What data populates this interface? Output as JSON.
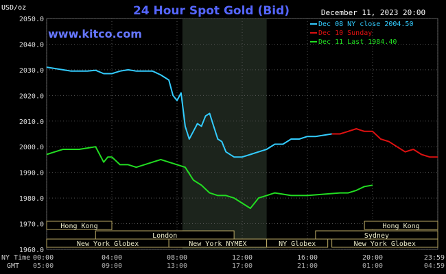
{
  "chart_data": {
    "type": "line",
    "title": "24 Hour Spot Gold (Bid)",
    "watermark": "www.kitco.com",
    "timestamp": "December 11, 2023 20:00",
    "ylabel": "USD/oz",
    "ylim": [
      1960,
      2050
    ],
    "yticks": [
      "2050.0",
      "2040.0",
      "2030.0",
      "2020.0",
      "2010.0",
      "2000.0",
      "1990.0",
      "1980.0",
      "1970.0",
      "1960.0"
    ],
    "x_axis": {
      "row1_label": "NY Time",
      "row2_label": "GMT",
      "ny_times": [
        "00:00",
        "04:00",
        "08:00",
        "12:00",
        "16:00",
        "20:00",
        "23:59"
      ],
      "gmt_times": [
        "05:00",
        "09:00",
        "13:00",
        "17:00",
        "21:00",
        "01:00",
        "04:59"
      ]
    },
    "legend": [
      {
        "label": "Dec 08 NY close 2004.50",
        "color": "#33ccff"
      },
      {
        "label": "Dec 10 Sunday",
        "color": "#dd1111"
      },
      {
        "label": "Dec 11 Last 1984.40",
        "color": "#22dd22"
      }
    ],
    "series": [
      {
        "name": "Dec 08 NY close 2004.50",
        "color": "#33ccff",
        "x": [
          0,
          0.5,
          1,
          1.5,
          2,
          2.5,
          3,
          3.5,
          4,
          4.5,
          5,
          5.5,
          6,
          6.5,
          7,
          7.5,
          7.75,
          8,
          8.25,
          8.5,
          8.75,
          9,
          9.25,
          9.5,
          9.75,
          10,
          10.25,
          10.5,
          10.75,
          11,
          11.5,
          12,
          12.5,
          13,
          13.5,
          14,
          14.5,
          15,
          15.5,
          16,
          16.5,
          17,
          17.5
        ],
        "values": [
          2031,
          2030.5,
          2030,
          2029.5,
          2029.5,
          2029.5,
          2029.8,
          2028.5,
          2028.5,
          2029.5,
          2030,
          2029.5,
          2029.5,
          2029.5,
          2028,
          2026,
          2020,
          2018,
          2021,
          2008,
          2003,
          2006,
          2009,
          2008,
          2012,
          2013,
          2008,
          2003,
          2002,
          1998,
          1996,
          1996,
          1997,
          1998,
          1999,
          2001,
          2001,
          2003,
          2003,
          2004,
          2004,
          2004.5,
          2005
        ]
      },
      {
        "name": "Dec 10 Sunday",
        "color": "#dd1111",
        "x": [
          17.5,
          18,
          18.5,
          19,
          19.5,
          20,
          20.5,
          21,
          21.5,
          22,
          22.5,
          23,
          23.5,
          24
        ],
        "values": [
          2005,
          2005,
          2006,
          2007,
          2006,
          2006,
          2003,
          2002,
          2000,
          1998,
          1999,
          1997,
          1996,
          1996
        ]
      },
      {
        "name": "Dec 11 Last 1984.40",
        "color": "#22dd22",
        "x": [
          0,
          0.5,
          1,
          1.5,
          2,
          2.5,
          3,
          3.5,
          3.75,
          4,
          4.5,
          5,
          5.5,
          6,
          6.5,
          7,
          7.5,
          8,
          8.5,
          9,
          9.5,
          10,
          10.5,
          11,
          11.5,
          12,
          12.5,
          13,
          13.5,
          14,
          15,
          16,
          17,
          18,
          18.5,
          19,
          19.5,
          20
        ],
        "values": [
          1997,
          1998,
          1999,
          1999,
          1999,
          1999.5,
          2000,
          1994,
          1996,
          1996,
          1993,
          1993,
          1992,
          1993,
          1994,
          1995,
          1994,
          1993,
          1992,
          1987,
          1985,
          1982,
          1981,
          1981,
          1980,
          1978,
          1976,
          1980,
          1981,
          1982,
          1981,
          1981,
          1981.5,
          1982,
          1982,
          1983,
          1984.5,
          1985
        ]
      }
    ],
    "market_sessions": [
      {
        "label": "Hong Kong",
        "start": 0,
        "end": 4
      },
      {
        "label": "London",
        "start": 3,
        "end": 11.5
      },
      {
        "label": "New York Globex",
        "start": 0,
        "end": 7.5
      },
      {
        "label": "New York NYMEX",
        "start": 7.5,
        "end": 13.5
      },
      {
        "label": "NY Globex",
        "start": 13.5,
        "end": 17.25
      },
      {
        "label": "Hong Kong",
        "start": 19.5,
        "end": 24
      },
      {
        "label": "Sydney",
        "start": 16.5,
        "end": 24
      },
      {
        "label": "New York Globex",
        "start": 17.5,
        "end": 24
      }
    ],
    "shaded_period": {
      "start": 8.33,
      "end": 13.5
    }
  }
}
